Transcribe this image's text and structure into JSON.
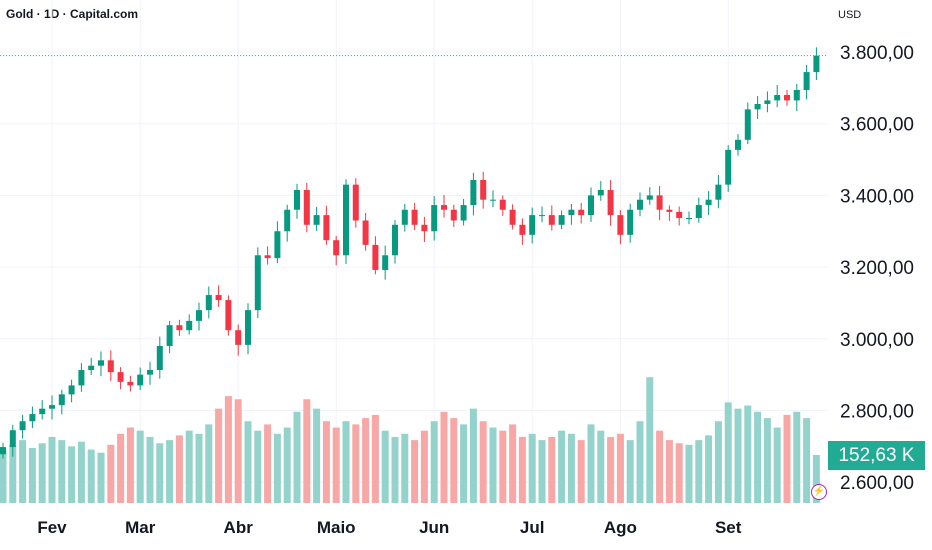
{
  "header": {
    "title": "Gold · 1D · Capital.com",
    "currency": "USD"
  },
  "volume_tag": "152,63 K",
  "colors": {
    "up": "#089981",
    "down": "#f23645",
    "vol_up": "#93d3cb",
    "vol_down": "#f7a8a6",
    "last_line": "#22ab94"
  },
  "chart_data": {
    "type": "candlestick",
    "title": "Gold · 1D · Capital.com",
    "ylabel": "USD",
    "ylim": [
      2560,
      3860
    ],
    "y_ticks": [
      {
        "value": 3800,
        "label": "3.800,00"
      },
      {
        "value": 3600,
        "label": "3.600,00"
      },
      {
        "value": 3400,
        "label": "3.400,00"
      },
      {
        "value": 3200,
        "label": "3.200,00"
      },
      {
        "value": 3000,
        "label": "3.000,00"
      },
      {
        "value": 2800,
        "label": "2.800,00"
      },
      {
        "value": 2600,
        "label": "2.600,00"
      }
    ],
    "x_ticks": [
      {
        "index": 5,
        "label": "Fev"
      },
      {
        "index": 14,
        "label": "Mar"
      },
      {
        "index": 24,
        "label": "Abr"
      },
      {
        "index": 34,
        "label": "Maio"
      },
      {
        "index": 44,
        "label": "Jun"
      },
      {
        "index": 54,
        "label": "Jul"
      },
      {
        "index": 63,
        "label": "Ago"
      },
      {
        "index": 74,
        "label": "Set"
      }
    ],
    "last_price": 3790,
    "closes": [
      2698,
      2745,
      2770,
      2790,
      2805,
      2815,
      2845,
      2870,
      2913,
      2925,
      2940,
      2907,
      2880,
      2870,
      2900,
      2913,
      2980,
      3038,
      3024,
      3050,
      3080,
      3122,
      3108,
      3024,
      2983,
      3080,
      3233,
      3225,
      3300,
      3360,
      3415,
      3318,
      3345,
      3275,
      3233,
      3430,
      3330,
      3262,
      3192,
      3233,
      3318,
      3360,
      3318,
      3300,
      3373,
      3360,
      3330,
      3373,
      3443,
      3388,
      3388,
      3360,
      3318,
      3290,
      3345,
      3345,
      3318,
      3345,
      3360,
      3345,
      3400,
      3415,
      3345,
      3290,
      3360,
      3388,
      3400,
      3360,
      3354,
      3337,
      3337,
      3373,
      3388,
      3430,
      3527,
      3555,
      3640,
      3655,
      3665,
      3680,
      3665,
      3694,
      3744,
      3790
    ],
    "volumes_k": [
      170,
      185,
      200,
      175,
      190,
      210,
      200,
      180,
      195,
      170,
      160,
      185,
      220,
      240,
      230,
      210,
      190,
      200,
      215,
      230,
      220,
      250,
      300,
      340,
      330,
      260,
      230,
      250,
      220,
      240,
      290,
      330,
      300,
      260,
      240,
      260,
      250,
      270,
      280,
      230,
      210,
      220,
      200,
      230,
      260,
      290,
      270,
      250,
      300,
      260,
      240,
      230,
      250,
      210,
      220,
      200,
      210,
      230,
      220,
      200,
      250,
      230,
      210,
      220,
      200,
      260,
      400,
      230,
      200,
      190,
      185,
      200,
      215,
      260,
      320,
      300,
      310,
      290,
      270,
      240,
      280,
      290,
      270,
      152.63
    ]
  }
}
